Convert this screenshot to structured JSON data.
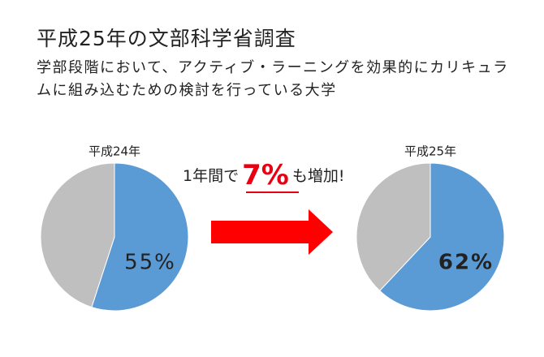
{
  "title": "平成25年の文部科学省調査",
  "subtitle": "学部段階において、アクティブ・ラーニングを効果的にカリキュラムに組み込むための検討を行っている大学",
  "annotation": {
    "prefix": "1年間で",
    "highlight": "7%",
    "suffix": "も増加!"
  },
  "chart_data": [
    {
      "type": "pie",
      "title": "平成24年",
      "categories": [
        null,
        null
      ],
      "values": [
        55,
        45
      ],
      "value_labels": [
        "55%",
        null
      ],
      "colors": [
        "#5b9bd5",
        "#bfbfbf"
      ],
      "value_label_color": "#222222",
      "value_label_bold": false
    },
    {
      "type": "pie",
      "title": "平成25年",
      "categories": [
        null,
        null
      ],
      "values": [
        62,
        38
      ],
      "value_labels": [
        "62%",
        null
      ],
      "colors": [
        "#5b9bd5",
        "#bfbfbf"
      ],
      "value_label_color": "#e60012",
      "value_label_bold": true
    }
  ]
}
